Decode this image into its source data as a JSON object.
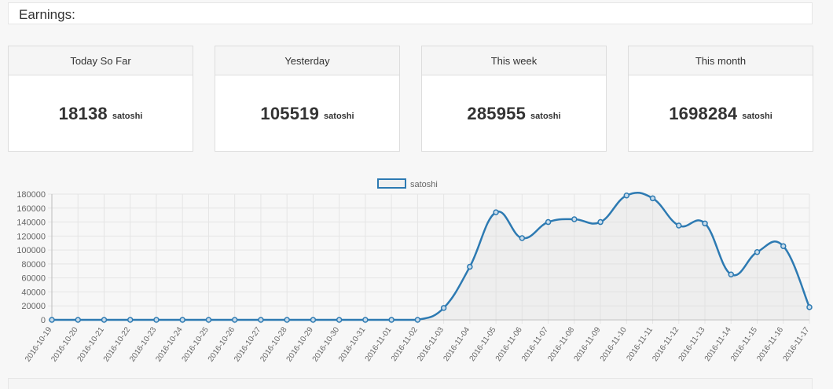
{
  "header": {
    "title": "Earnings:"
  },
  "cards": [
    {
      "label": "Today So Far",
      "value": "18138",
      "unit": "satoshi"
    },
    {
      "label": "Yesterday",
      "value": "105519",
      "unit": "satoshi"
    },
    {
      "label": "This week",
      "value": "285955",
      "unit": "satoshi"
    },
    {
      "label": "This month",
      "value": "1698284",
      "unit": "satoshi"
    }
  ],
  "colors": {
    "series": "#2d7ab2",
    "fill": "rgba(220,220,220,0.35)",
    "grid": "#e5e5e5",
    "text": "#666666"
  },
  "chart_data": {
    "type": "line",
    "legend_position": "top-center",
    "grid": true,
    "ylim": [
      0,
      180000
    ],
    "yticks": [
      0,
      20000,
      40000,
      60000,
      80000,
      100000,
      120000,
      140000,
      160000,
      180000
    ],
    "categories": [
      "2016-10-19",
      "2016-10-20",
      "2016-10-21",
      "2016-10-22",
      "2016-10-23",
      "2016-10-24",
      "2016-10-25",
      "2016-10-26",
      "2016-10-27",
      "2016-10-28",
      "2016-10-29",
      "2016-10-30",
      "2016-10-31",
      "2016-11-01",
      "2016-11-02",
      "2016-11-03",
      "2016-11-04",
      "2016-11-05",
      "2016-11-06",
      "2016-11-07",
      "2016-11-08",
      "2016-11-09",
      "2016-11-10",
      "2016-11-11",
      "2016-11-12",
      "2016-11-13",
      "2016-11-14",
      "2016-11-15",
      "2016-11-16",
      "2016-11-17"
    ],
    "series": [
      {
        "name": "satoshi",
        "values": [
          0,
          0,
          0,
          0,
          0,
          0,
          0,
          0,
          0,
          0,
          0,
          0,
          0,
          0,
          0,
          17000,
          76000,
          154000,
          117000,
          140000,
          144000,
          140000,
          178000,
          174000,
          135000,
          138000,
          65000,
          97000,
          105519,
          18138
        ]
      }
    ]
  }
}
